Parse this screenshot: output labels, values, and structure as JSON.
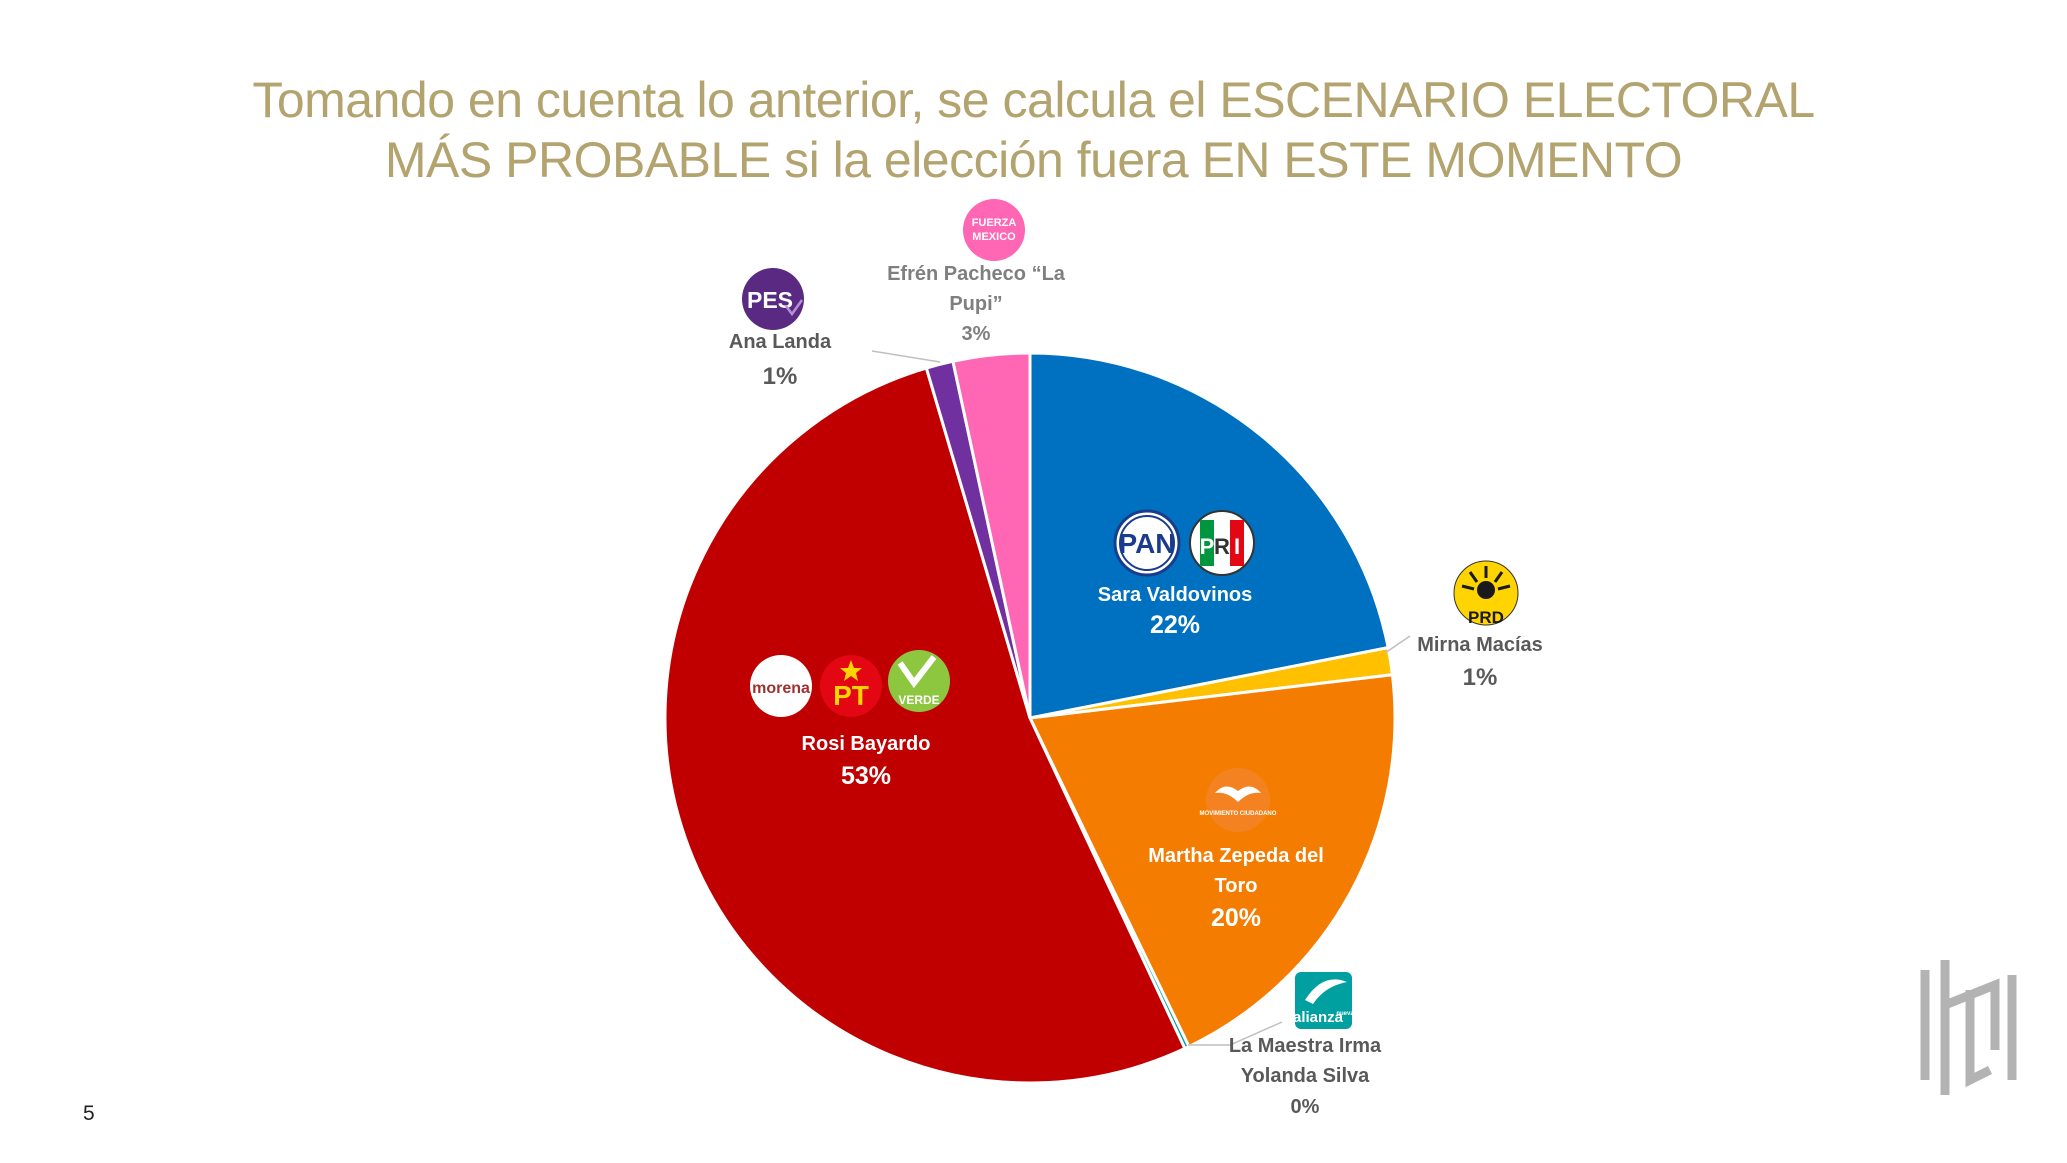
{
  "title": {
    "line1": "Tomando en cuenta lo anterior, se calcula el ESCENARIO ELECTORAL",
    "line2": "MÁS PROBABLE si la elección fuera EN ESTE MOMENTO"
  },
  "page_number": "5",
  "logos": {
    "pan": "PAN",
    "pri_letters": [
      "P",
      "R",
      "I"
    ],
    "prd": "PRD",
    "movimiento_ciudadano": "MOVIMIENTO CIUDADANO",
    "nueva_alianza": "alianza",
    "nueva_small": "nueva",
    "morena": "morena",
    "pt": "PT",
    "verde": "VERDE",
    "pes": "PES",
    "fuerza_mexico_line1": "FUERZA",
    "fuerza_mexico_line2": "MEXICO"
  },
  "chart_data": {
    "type": "pie",
    "title": "Tomando en cuenta lo anterior, se calcula el ESCENARIO ELECTORAL MÁS PROBABLE si la elección fuera EN ESTE MOMENTO",
    "start_angle_deg": 0,
    "direction": "clockwise",
    "slices": [
      {
        "label_lines": [
          "Sara Valdovinos"
        ],
        "pct_label": "22%",
        "value": 22,
        "color": "#0070c0",
        "parties": [
          "PAN",
          "PRI"
        ]
      },
      {
        "label_lines": [
          "Mirna Macías"
        ],
        "pct_label": "1%",
        "value": 1.2,
        "color": "#ffc000",
        "parties": [
          "PRD"
        ]
      },
      {
        "label_lines": [
          "Martha Zepeda del",
          "Toro"
        ],
        "pct_label": "20%",
        "value": 19.8,
        "color": "#f47c00",
        "parties": [
          "Movimiento Ciudadano"
        ]
      },
      {
        "label_lines": [
          "La Maestra Irma",
          "Yolanda Silva"
        ],
        "pct_label": "0%",
        "value": 0.2,
        "color": "#00a09a",
        "parties": [
          "Nueva Alianza"
        ]
      },
      {
        "label_lines": [
          "Rosi Bayardo"
        ],
        "pct_label": "53%",
        "value": 52.6,
        "color": "#c00000",
        "parties": [
          "Morena",
          "PT",
          "Verde"
        ]
      },
      {
        "label_lines": [
          "Ana Landa"
        ],
        "pct_label": "1%",
        "value": 1.2,
        "color": "#7030a0",
        "parties": [
          "PES"
        ]
      },
      {
        "label_lines": [
          "Efrén Pacheco “La",
          "Pupi”"
        ],
        "pct_label": "3%",
        "value": 3.4,
        "color": "#ff66b3",
        "parties": [
          "Fuerza México"
        ]
      }
    ]
  }
}
